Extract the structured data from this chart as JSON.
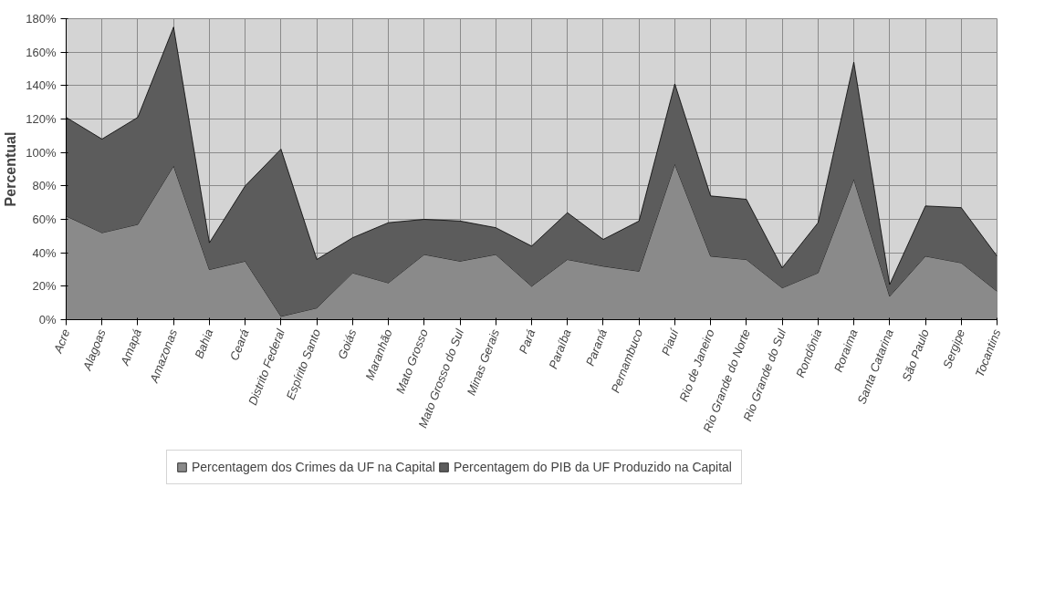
{
  "chart_data": {
    "type": "area",
    "stacked": true,
    "ylabel": "Percentual",
    "categories": [
      "Acre",
      "Alagoas",
      "Amapá",
      "Amazonas",
      "Bahia",
      "Ceará",
      "Distrito Federal",
      "Espírito Santo",
      "Goiás",
      "Maranhão",
      "Mato Grosso",
      "Mato Grosso do Sul",
      "Minas Gerais",
      "Pará",
      "Paraíba",
      "Paraná",
      "Pernambuco",
      "Piauí",
      "Rio de Janeiro",
      "Rio Grande do Norte",
      "Rio Grande do Sul",
      "Rondônia",
      "Roraima",
      "Santa Catarina",
      "São Paulo",
      "Sergipe",
      "Tocantins"
    ],
    "series": [
      {
        "name": "Percentagem dos Crimes da UF na Capital",
        "color": "#8a8a8a",
        "values": [
          62,
          52,
          57,
          92,
          30,
          35,
          2,
          7,
          28,
          22,
          39,
          35,
          39,
          20,
          36,
          32,
          29,
          93,
          38,
          36,
          19,
          28,
          84,
          14,
          38,
          34,
          17
        ]
      },
      {
        "name": "Percentagem do PIB da UF Produzido na Capital",
        "color": "#5c5c5c",
        "values": [
          59,
          56,
          64,
          83,
          16,
          45,
          100,
          29,
          21,
          36,
          21,
          24,
          16,
          24,
          28,
          16,
          30,
          48,
          36,
          36,
          12,
          30,
          70,
          7,
          30,
          33,
          21
        ]
      }
    ],
    "ylim": [
      0,
      180
    ],
    "yticks": [
      {
        "value": 0,
        "label": "0%"
      },
      {
        "value": 20,
        "label": "20%"
      },
      {
        "value": 40,
        "label": "40%"
      },
      {
        "value": 60,
        "label": "60%"
      },
      {
        "value": 80,
        "label": "80%"
      },
      {
        "value": 100,
        "label": "100%"
      },
      {
        "value": 120,
        "label": "120%"
      },
      {
        "value": 140,
        "label": "140%"
      },
      {
        "value": 160,
        "label": "160%"
      },
      {
        "value": 180,
        "label": "180%"
      }
    ],
    "grid": true,
    "legend": "bottom"
  }
}
